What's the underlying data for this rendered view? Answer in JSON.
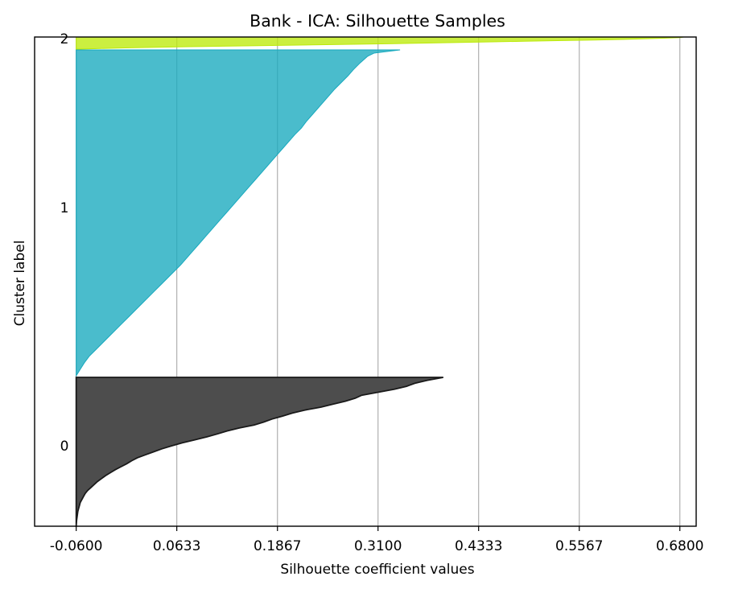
{
  "chart_data": {
    "type": "area",
    "title": "Bank - ICA: Silhouette Samples",
    "xlabel": "Silhouette coefficient values",
    "ylabel": "Cluster label",
    "xlim": [
      -0.111,
      0.7
    ],
    "x_ticks": [
      "-0.0600",
      "0.0633",
      "0.1867",
      "0.3100",
      "0.4333",
      "0.5567",
      "0.6800"
    ],
    "x_tick_values": [
      -0.06,
      0.0633,
      0.1867,
      0.31,
      0.4333,
      0.5567,
      0.68
    ],
    "y_ticks": [
      "0",
      "1",
      "2"
    ],
    "grid": "vertical",
    "clusters": [
      {
        "label": "0",
        "color": "#4d4d4d",
        "edge_color": "#1a1a1a",
        "profile": [
          [
            0.0,
            0.39
          ],
          [
            0.02,
            0.37
          ],
          [
            0.04,
            0.355
          ],
          [
            0.06,
            0.345
          ],
          [
            0.08,
            0.33
          ],
          [
            0.1,
            0.31
          ],
          [
            0.12,
            0.29
          ],
          [
            0.14,
            0.282
          ],
          [
            0.16,
            0.27
          ],
          [
            0.18,
            0.255
          ],
          [
            0.2,
            0.24
          ],
          [
            0.22,
            0.22
          ],
          [
            0.24,
            0.205
          ],
          [
            0.26,
            0.193
          ],
          [
            0.28,
            0.18
          ],
          [
            0.3,
            0.17
          ],
          [
            0.32,
            0.158
          ],
          [
            0.34,
            0.14
          ],
          [
            0.36,
            0.125
          ],
          [
            0.38,
            0.113
          ],
          [
            0.4,
            0.1
          ],
          [
            0.42,
            0.085
          ],
          [
            0.44,
            0.07
          ],
          [
            0.46,
            0.057
          ],
          [
            0.48,
            0.045
          ],
          [
            0.5,
            0.035
          ],
          [
            0.52,
            0.025
          ],
          [
            0.54,
            0.015
          ],
          [
            0.56,
            0.008
          ],
          [
            0.58,
            0.002
          ],
          [
            0.6,
            -0.005
          ],
          [
            0.62,
            -0.012
          ],
          [
            0.64,
            -0.018
          ],
          [
            0.66,
            -0.024
          ],
          [
            0.68,
            -0.029
          ],
          [
            0.7,
            -0.034
          ],
          [
            0.72,
            -0.038
          ],
          [
            0.74,
            -0.042
          ],
          [
            0.76,
            -0.046
          ],
          [
            0.78,
            -0.049
          ],
          [
            0.8,
            -0.051
          ],
          [
            0.82,
            -0.053
          ],
          [
            0.84,
            -0.055
          ],
          [
            0.86,
            -0.056
          ],
          [
            0.88,
            -0.057
          ],
          [
            0.9,
            -0.058
          ],
          [
            0.92,
            -0.0585
          ],
          [
            0.94,
            -0.059
          ],
          [
            0.96,
            -0.0595
          ],
          [
            1.0,
            -0.06
          ]
        ]
      },
      {
        "label": "1",
        "color": "#17a9be",
        "edge_color": "#17a9be",
        "profile": [
          [
            0.0,
            0.337
          ],
          [
            0.01,
            0.305
          ],
          [
            0.02,
            0.297
          ],
          [
            0.04,
            0.288
          ],
          [
            0.06,
            0.28
          ],
          [
            0.08,
            0.273
          ],
          [
            0.1,
            0.265
          ],
          [
            0.12,
            0.257
          ],
          [
            0.14,
            0.25
          ],
          [
            0.16,
            0.243
          ],
          [
            0.18,
            0.236
          ],
          [
            0.2,
            0.229
          ],
          [
            0.22,
            0.222
          ],
          [
            0.24,
            0.216
          ],
          [
            0.26,
            0.208
          ],
          [
            0.28,
            0.201
          ],
          [
            0.3,
            0.194
          ],
          [
            0.32,
            0.187
          ],
          [
            0.34,
            0.18
          ],
          [
            0.36,
            0.173
          ],
          [
            0.38,
            0.166
          ],
          [
            0.4,
            0.159
          ],
          [
            0.42,
            0.152
          ],
          [
            0.44,
            0.145
          ],
          [
            0.46,
            0.138
          ],
          [
            0.48,
            0.131
          ],
          [
            0.5,
            0.124
          ],
          [
            0.52,
            0.117
          ],
          [
            0.54,
            0.11
          ],
          [
            0.56,
            0.103
          ],
          [
            0.58,
            0.096
          ],
          [
            0.6,
            0.089
          ],
          [
            0.62,
            0.082
          ],
          [
            0.64,
            0.075
          ],
          [
            0.66,
            0.068
          ],
          [
            0.68,
            0.06
          ],
          [
            0.7,
            0.052
          ],
          [
            0.72,
            0.044
          ],
          [
            0.74,
            0.036
          ],
          [
            0.76,
            0.028
          ],
          [
            0.78,
            0.02
          ],
          [
            0.8,
            0.012
          ],
          [
            0.82,
            0.004
          ],
          [
            0.84,
            -0.004
          ],
          [
            0.86,
            -0.012
          ],
          [
            0.88,
            -0.02
          ],
          [
            0.9,
            -0.028
          ],
          [
            0.92,
            -0.036
          ],
          [
            0.94,
            -0.044
          ],
          [
            0.96,
            -0.05
          ],
          [
            0.98,
            -0.055
          ],
          [
            1.0,
            -0.06
          ]
        ]
      },
      {
        "label": "2",
        "color": "#bcea0a",
        "edge_color": "#bcea0a",
        "profile": [
          [
            0.0,
            0.685
          ],
          [
            0.05,
            0.68
          ],
          [
            0.1,
            0.66
          ],
          [
            0.15,
            0.635
          ],
          [
            0.2,
            0.61
          ],
          [
            0.25,
            0.575
          ],
          [
            0.3,
            0.53
          ],
          [
            0.35,
            0.49
          ],
          [
            0.4,
            0.45
          ],
          [
            0.45,
            0.41
          ],
          [
            0.5,
            0.37
          ],
          [
            0.55,
            0.33
          ],
          [
            0.6,
            0.28
          ],
          [
            0.65,
            0.23
          ],
          [
            0.7,
            0.18
          ],
          [
            0.75,
            0.13
          ],
          [
            0.8,
            0.08
          ],
          [
            0.85,
            0.04
          ],
          [
            0.9,
            0.0
          ],
          [
            0.95,
            -0.03
          ],
          [
            1.0,
            -0.055
          ]
        ]
      }
    ]
  }
}
